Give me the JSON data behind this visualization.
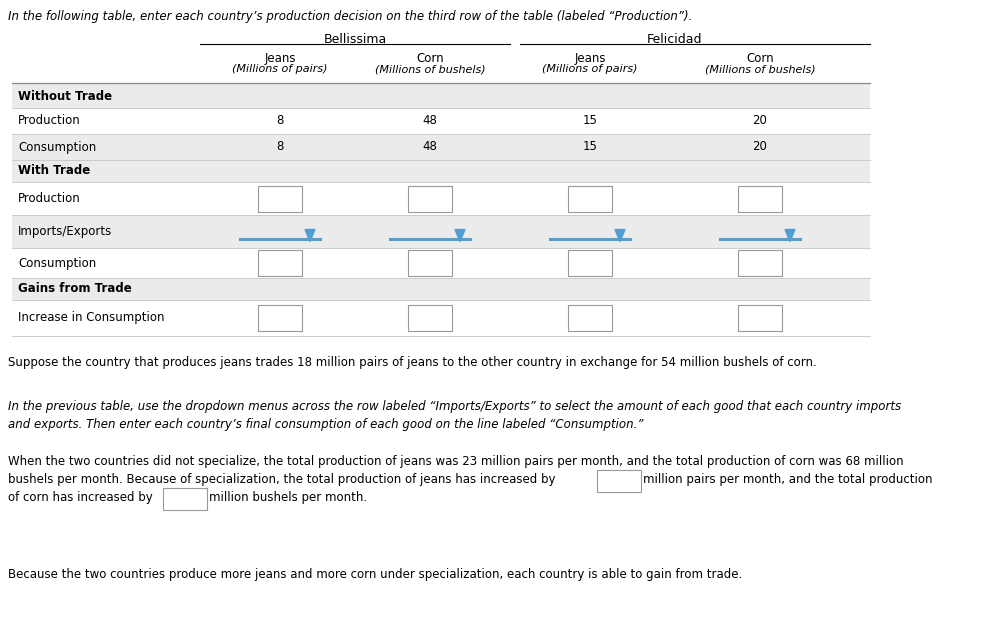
{
  "intro_text": "In the following table, enter each country’s production decision on the third row of the table (labeled “Production”).",
  "country1": "Bellissima",
  "country2": "Felicidad",
  "col_headers": [
    "Jeans",
    "Corn",
    "Jeans",
    "Corn"
  ],
  "col_subheaders": [
    "(Millions of pairs)",
    "(Millions of bushels)",
    "(Millions of pairs)",
    "(Millions of bushels)"
  ],
  "production_no_trade": [
    8,
    48,
    15,
    20
  ],
  "consumption_no_trade": [
    8,
    48,
    15,
    20
  ],
  "bg_gray": "#ebebeb",
  "bg_white": "#ffffff",
  "dropdown_color": "#4f9fd4",
  "paragraph1": "Suppose the country that produces jeans trades 18 million pairs of jeans to the other country in exchange for 54 million bushels of corn.",
  "paragraph2_line1": "In the previous table, use the dropdown menus across the row labeled “Imports/Exports” to select the amount of each good that each country imports",
  "paragraph2_line2": "and exports. Then enter each country’s final consumption of each good on the line labeled “Consumption.”",
  "paragraph3_line1": "When the two countries did not specialize, the total production of jeans was 23 million pairs per month, and the total production of corn was 68 million",
  "paragraph3_line2": "bushels per month. Because of specialization, the total production of jeans has increased by",
  "paragraph3_line3": "million pairs per month, and the total production",
  "paragraph3_line4": "of corn has increased by",
  "paragraph3_line5": "million bushels per month.",
  "paragraph4": "Because the two countries produce more jeans and more corn under specialization, each country is able to gain from trade.",
  "fig_width": 10.04,
  "fig_height": 6.17,
  "dpi": 100
}
